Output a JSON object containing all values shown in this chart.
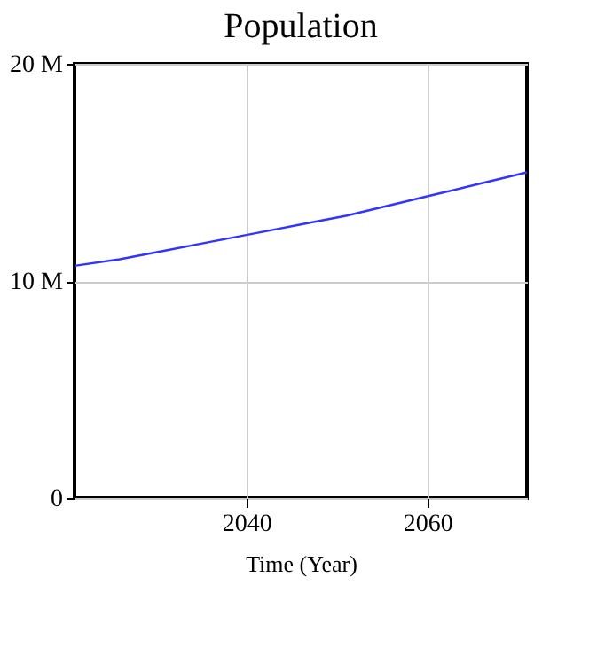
{
  "chart_data": {
    "type": "line",
    "title": "Population",
    "xlabel": "Time (Year)",
    "x": [
      2021,
      2026,
      2031,
      2036,
      2041,
      2046,
      2051,
      2056,
      2061,
      2066,
      2071
    ],
    "series": [
      {
        "color": "#3333ff",
        "values": [
          10700000,
          11000000,
          11400000,
          11800000,
          12200000,
          12600000,
          13000000,
          13500000,
          14000000,
          14500000,
          15000000
        ]
      }
    ],
    "xlim": [
      2021,
      2071
    ],
    "xticks": [
      2040,
      2060
    ],
    "ylim": [
      0,
      20000000
    ],
    "yticks": [
      {
        "value": 0,
        "label": "0"
      },
      {
        "value": 10000000,
        "label": "10 M"
      },
      {
        "value": 20000000,
        "label": "20 M"
      }
    ],
    "grid": true,
    "marker": "none",
    "line_style": "solid"
  }
}
